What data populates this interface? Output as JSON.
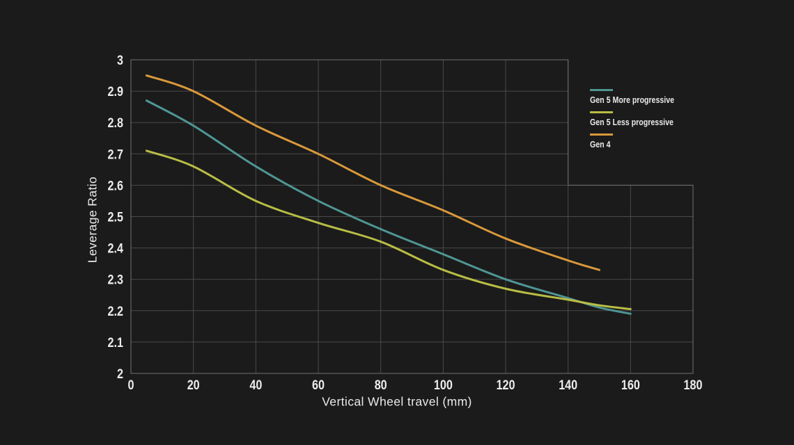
{
  "colors": {
    "background": "#1b1b1b",
    "grid": "#4a4a4a",
    "grid_border": "#707070",
    "tick_text": "#ececec",
    "title_text": "#e9e9e9",
    "legend_text": "#e8e8e8"
  },
  "chart_data": {
    "type": "line",
    "title": "",
    "xlabel": "Vertical Wheel travel (mm)",
    "ylabel": "Leverage Ratio",
    "xlim": [
      0,
      180
    ],
    "ylim": [
      2,
      3
    ],
    "x_ticks": [
      0,
      20,
      40,
      60,
      80,
      100,
      120,
      140,
      160,
      180
    ],
    "x_tick_labels": [
      "0",
      "20",
      "40",
      "60",
      "80",
      "100",
      "120",
      "140",
      "160",
      "180"
    ],
    "y_ticks": [
      2,
      2.1,
      2.2,
      2.3,
      2.4,
      2.5,
      2.6,
      2.7,
      2.8,
      2.9,
      3
    ],
    "y_tick_labels": [
      "2",
      "2.1",
      "2.2",
      "2.3",
      "2.4",
      "2.5",
      "2.6",
      "2.7",
      "2.8",
      "2.9",
      "3"
    ],
    "grid": "on",
    "grid_shape_note": "L-shaped plot: gridlines above y=2.6 stop at x=140; from y=2.6 down the grid extends to x=180",
    "legend_position": "upper right, outside the truncated grid area",
    "series": [
      {
        "name": "Gen 5 More progressive",
        "color": "#4f9694",
        "points": [
          [
            5,
            2.87
          ],
          [
            20,
            2.79
          ],
          [
            40,
            2.66
          ],
          [
            60,
            2.55
          ],
          [
            80,
            2.46
          ],
          [
            100,
            2.38
          ],
          [
            120,
            2.3
          ],
          [
            140,
            2.24
          ],
          [
            150,
            2.21
          ],
          [
            160,
            2.19
          ]
        ]
      },
      {
        "name": "Gen 5 Less progressive",
        "color": "#b9bd45",
        "points": [
          [
            5,
            2.71
          ],
          [
            20,
            2.66
          ],
          [
            40,
            2.55
          ],
          [
            60,
            2.48
          ],
          [
            80,
            2.42
          ],
          [
            100,
            2.33
          ],
          [
            120,
            2.27
          ],
          [
            140,
            2.235
          ],
          [
            150,
            2.217
          ],
          [
            160,
            2.205
          ]
        ]
      },
      {
        "name": "Gen 4",
        "color": "#d9993b",
        "points": [
          [
            5,
            2.95
          ],
          [
            20,
            2.9
          ],
          [
            40,
            2.79
          ],
          [
            60,
            2.7
          ],
          [
            80,
            2.6
          ],
          [
            100,
            2.52
          ],
          [
            120,
            2.43
          ],
          [
            140,
            2.36
          ],
          [
            150,
            2.33
          ]
        ]
      }
    ]
  }
}
